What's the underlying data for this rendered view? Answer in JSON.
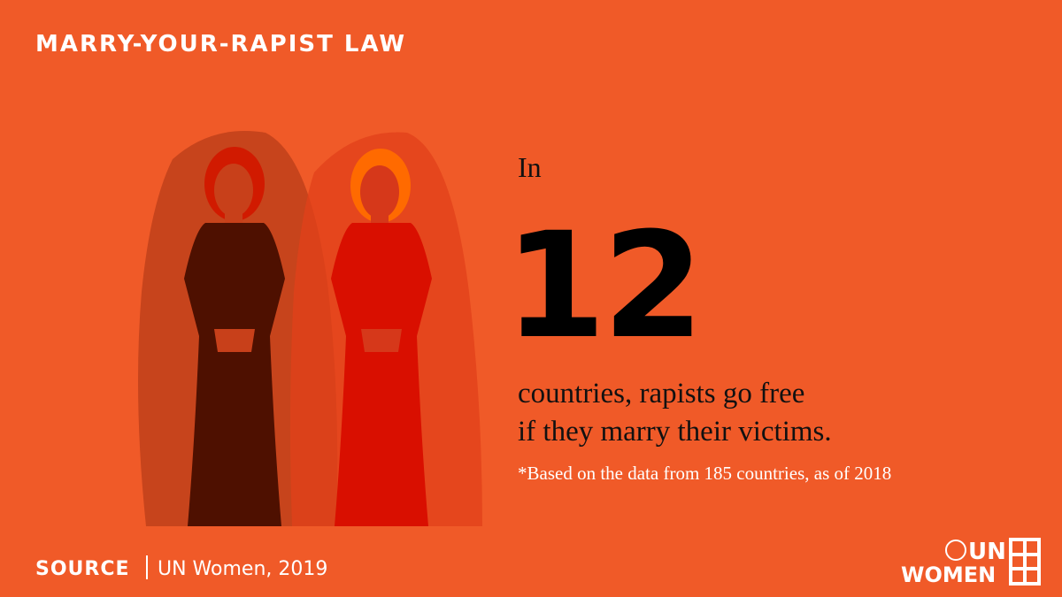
{
  "header": {
    "title": "MARRY-YOUR-RAPIST LAW"
  },
  "stat": {
    "prefix": "In",
    "number": 12,
    "lines": [
      "countries, rapists go free",
      "if they marry their victims."
    ],
    "footnote": "*Based on the data from 185 countries, as of 2018"
  },
  "source": {
    "label": "SOURCE",
    "text": "UN Women, 2019"
  },
  "logo": {
    "line1": "UN",
    "line2": "WOMEN"
  }
}
